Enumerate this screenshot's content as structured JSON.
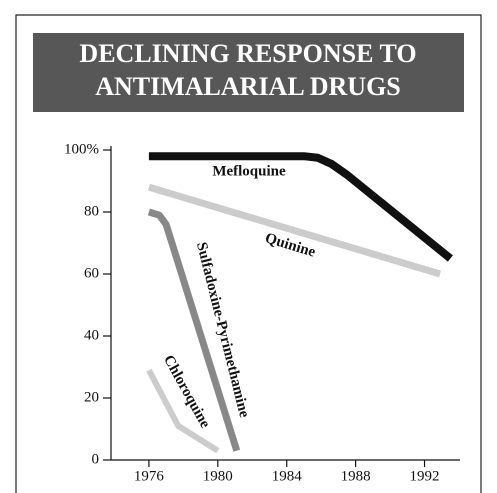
{
  "chart_data": {
    "type": "line",
    "title": [
      "DECLINING RESPONSE TO",
      "ANTIMALARIAL DRUGS"
    ],
    "series": [
      {
        "name": "Mefloquine",
        "color": "#111111",
        "x": [
          1976,
          1985,
          1985.8,
          1986.6,
          1987.5,
          1993.5
        ],
        "values": [
          98,
          98,
          97.5,
          95.5,
          92,
          65
        ]
      },
      {
        "name": "Quinine",
        "color": "#cccccc",
        "x": [
          1976,
          1992.9
        ],
        "values": [
          88,
          60
        ]
      },
      {
        "name": "Sulfadoxine-Pyrimethamine",
        "color": "#888888",
        "x": [
          1976,
          1976.6,
          1977,
          1981.1
        ],
        "values": [
          80,
          79,
          76,
          3
        ]
      },
      {
        "name": "Chloroquine",
        "color": "#cccccc",
        "x": [
          1976,
          1977.7,
          1980
        ],
        "values": [
          29,
          11,
          3
        ]
      }
    ],
    "xlim": [
      1973.8,
      1994
    ],
    "xticks": [
      1976,
      1980,
      1984,
      1988,
      1992
    ],
    "ylim": [
      0,
      100
    ],
    "yticks": [
      0,
      20,
      40,
      60,
      {
        "value": 100,
        "label": "100%"
      },
      80
    ]
  }
}
